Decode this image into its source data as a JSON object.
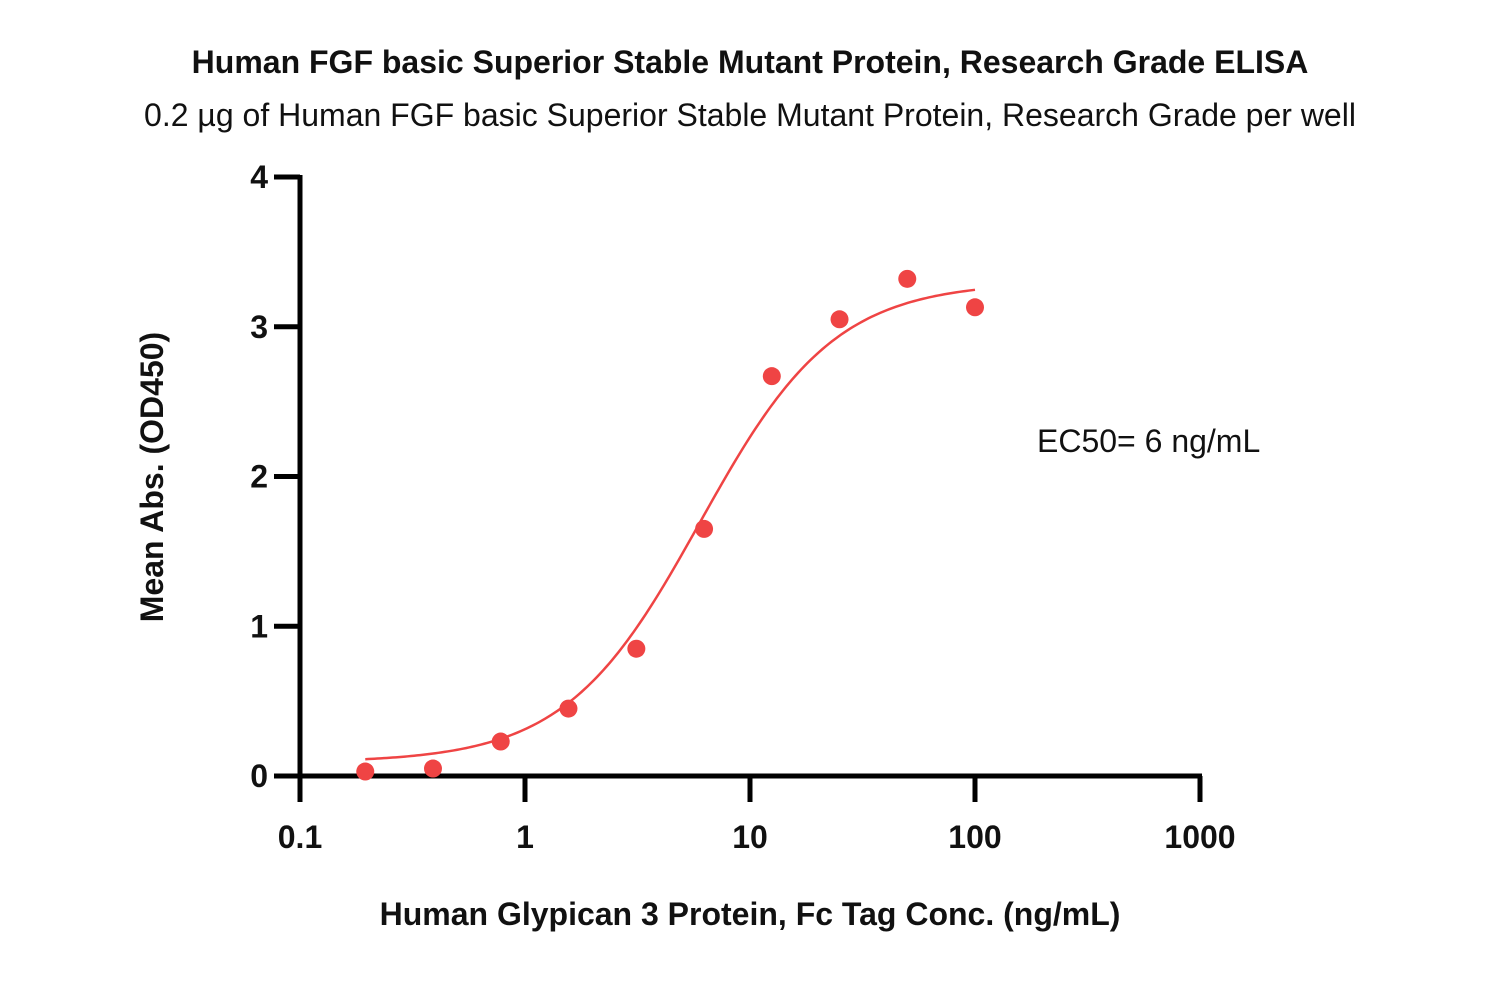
{
  "chart_data": {
    "type": "scatter",
    "title": "Human FGF basic Superior Stable Mutant Protein, Research Grade ELISA",
    "subtitle": "0.2 µg of Human FGF basic Superior Stable Mutant Protein, Research Grade per well",
    "xlabel": "Human Glypican 3 Protein, Fc Tag Conc. (ng/mL)",
    "ylabel": "Mean Abs. (OD450)",
    "x_scale": "log",
    "xlim": [
      0.1,
      1000
    ],
    "ylim": [
      0,
      4
    ],
    "x_ticks": [
      0.1,
      1,
      10,
      100,
      1000
    ],
    "x_tick_labels": [
      "0.1",
      "1",
      "10",
      "100",
      "1000"
    ],
    "y_ticks": [
      0,
      1,
      2,
      3,
      4
    ],
    "y_tick_labels": [
      "0",
      "1",
      "2",
      "3",
      "4"
    ],
    "grid": false,
    "series": [
      {
        "color": "#ef4444",
        "x": [
          0.195,
          0.39,
          0.78,
          1.56,
          3.125,
          6.25,
          12.5,
          25,
          50,
          100
        ],
        "y": [
          0.03,
          0.05,
          0.23,
          0.45,
          0.85,
          1.65,
          2.67,
          3.05,
          3.32,
          3.13
        ]
      }
    ],
    "fit_curve": {
      "type": "4PL",
      "color": "#ef4444",
      "bottom": 0.09,
      "top": 3.3,
      "ec50": 6,
      "hill": 1.45,
      "x_range": [
        0.195,
        100
      ]
    },
    "annotations": [
      {
        "text": "EC50= 6  ng/mL"
      }
    ]
  }
}
